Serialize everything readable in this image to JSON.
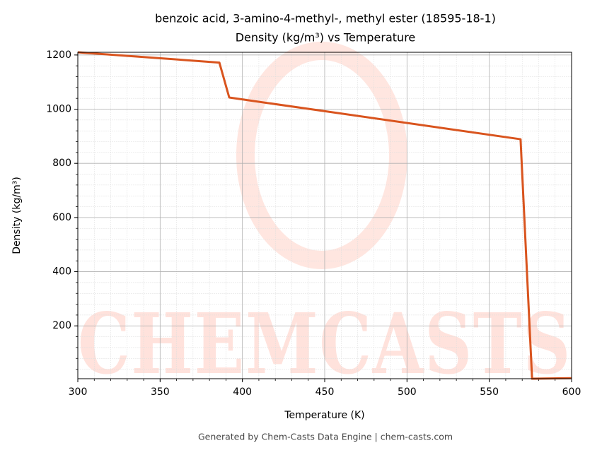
{
  "chart_data": {
    "type": "line",
    "title": "benzoic acid, 3-amino-4-methyl-, methyl ester (18595-18-1)",
    "subtitle": "Density (kg/m³) vs Temperature",
    "x_label": "Temperature (K)",
    "y_label": "Density (kg/m³)",
    "footer": "Generated by Chem-Casts Data Engine | chem-casts.com",
    "x": [
      300,
      386,
      392,
      569,
      576,
      600
    ],
    "series": [
      {
        "name": "Density",
        "color": "#d9541e",
        "values": [
          1210,
          1172,
          1043,
          889,
          5,
          7
        ]
      }
    ],
    "xlim": [
      300,
      600
    ],
    "xticks": [
      300,
      350,
      400,
      450,
      500,
      550,
      600
    ],
    "ylim": [
      5,
      1210
    ],
    "yticks": [
      200,
      400,
      600,
      800,
      1000,
      1200
    ],
    "grid": true
  }
}
